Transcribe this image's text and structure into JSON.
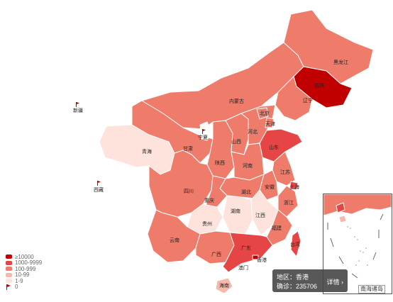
{
  "colors": {
    "ge10000": "#c00000",
    "r1000_9999": "#e54545",
    "r100_999": "#ef7b6a",
    "r10_99": "#f6b8aa",
    "r1_9": "#fde3dc",
    "zero": "#ffffff",
    "border": "#ffffff",
    "outline": "#c8c8c8"
  },
  "legend": [
    {
      "label": "≥10000",
      "color": "#c00000"
    },
    {
      "label": "1000-9999",
      "color": "#e54545"
    },
    {
      "label": "100-999",
      "color": "#ef7b6a"
    },
    {
      "label": "10-99",
      "color": "#f6b8aa"
    },
    {
      "label": "1-9",
      "color": "#fde3dc"
    },
    {
      "label": "0",
      "icon": "flag-icon"
    }
  ],
  "provinces": {
    "heilongjiang": "黑龙江",
    "jilin": "吉林",
    "liaoning": "辽宁",
    "neimenggu": "内蒙古",
    "beijing": "北京",
    "tianjin": "天津",
    "hebei": "河北",
    "shanxi": "山西",
    "shandong": "山东",
    "ningxia": "宁夏",
    "gansu": "甘肃",
    "qinghai": "青海",
    "xinjiang": "新疆",
    "xizang": "西藏",
    "shaanxi": "陕西",
    "henan": "河南",
    "jiangsu": "江苏",
    "anhui": "安徽",
    "shanghai": "上海",
    "hubei": "湖北",
    "zhejiang": "浙江",
    "sichuan": "四川",
    "chongqing": "重庆",
    "hunan": "湖南",
    "jiangxi": "江西",
    "fujian": "福建",
    "guizhou": "贵州",
    "yunnan": "云南",
    "guangxi": "广西",
    "guangdong": "广东",
    "taiwan": "台湾",
    "xianggang": "香港",
    "aomen": "澳门",
    "hainan": "海南"
  },
  "tooltip": {
    "region_label": "地区：",
    "region_value": "香港",
    "confirmed_label": "确诊：",
    "confirmed_value": "235706",
    "detail_label": "详情",
    "detail_icon": "chevron-right-icon"
  },
  "inset": {
    "label": "南海诸岛"
  }
}
